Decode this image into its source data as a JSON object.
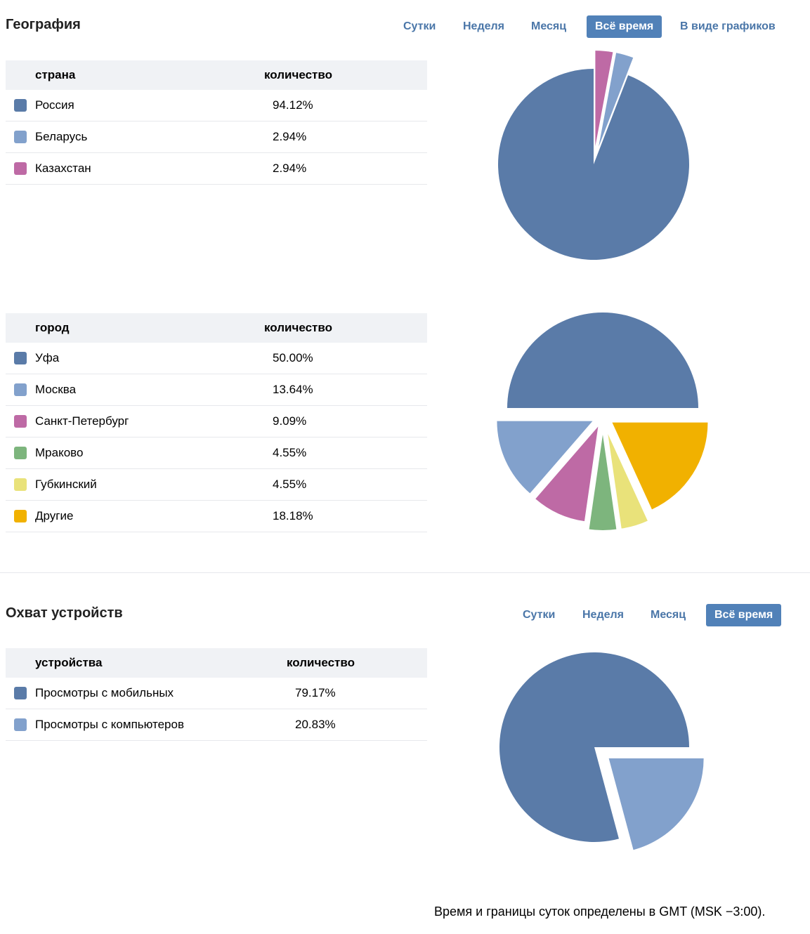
{
  "geography": {
    "title": "География",
    "tabs": [
      "Сутки",
      "Неделя",
      "Месяц",
      "Всё время",
      "В виде графиков"
    ],
    "active_tab": 3,
    "country_table": {
      "header_name": "страна",
      "header_value": "количество",
      "rows": [
        {
          "label": "Россия",
          "value": "94.12%",
          "color": "#5a7ba8"
        },
        {
          "label": "Беларусь",
          "value": "2.94%",
          "color": "#82a1cc"
        },
        {
          "label": "Казахстан",
          "value": "2.94%",
          "color": "#be6aa5"
        }
      ]
    },
    "city_table": {
      "header_name": "город",
      "header_value": "количество",
      "rows": [
        {
          "label": "Уфа",
          "value": "50.00%",
          "color": "#5a7ba8"
        },
        {
          "label": "Москва",
          "value": "13.64%",
          "color": "#82a1cc"
        },
        {
          "label": "Санкт-Петербург",
          "value": "9.09%",
          "color": "#be6aa5"
        },
        {
          "label": "Мраково",
          "value": "4.55%",
          "color": "#7db57d"
        },
        {
          "label": "Губкинский",
          "value": "4.55%",
          "color": "#e9e27a"
        },
        {
          "label": "Другие",
          "value": "18.18%",
          "color": "#f1b100"
        }
      ]
    }
  },
  "devices": {
    "title": "Охват устройств",
    "tabs": [
      "Сутки",
      "Неделя",
      "Месяц",
      "Всё время"
    ],
    "active_tab": 3,
    "table": {
      "header_name": "устройства",
      "header_value": "количество",
      "rows": [
        {
          "label": "Просмотры с мобильных",
          "value": "79.17%",
          "color": "#5a7ba8"
        },
        {
          "label": "Просмотры с компьютеров",
          "value": "20.83%",
          "color": "#82a1cc"
        }
      ]
    }
  },
  "footer_note": "Время и границы суток определены в GMT (MSK −3:00).",
  "chart_data": [
    {
      "type": "pie",
      "categories": [
        "Россия",
        "Беларусь",
        "Казахстан"
      ],
      "values": [
        94.12,
        2.94,
        2.94
      ],
      "colors": [
        "#5a7ba8",
        "#82a1cc",
        "#be6aa5"
      ]
    },
    {
      "type": "pie",
      "categories": [
        "Уфа",
        "Москва",
        "Санкт-Петербург",
        "Мраково",
        "Губкинский",
        "Другие"
      ],
      "values": [
        50.0,
        13.64,
        9.09,
        4.55,
        4.55,
        18.18
      ],
      "colors": [
        "#5a7ba8",
        "#82a1cc",
        "#be6aa5",
        "#7db57d",
        "#e9e27a",
        "#f1b100"
      ]
    },
    {
      "type": "pie",
      "categories": [
        "Просмотры с мобильных",
        "Просмотры с компьютеров"
      ],
      "values": [
        79.17,
        20.83
      ],
      "colors": [
        "#5a7ba8",
        "#82a1cc"
      ]
    }
  ]
}
